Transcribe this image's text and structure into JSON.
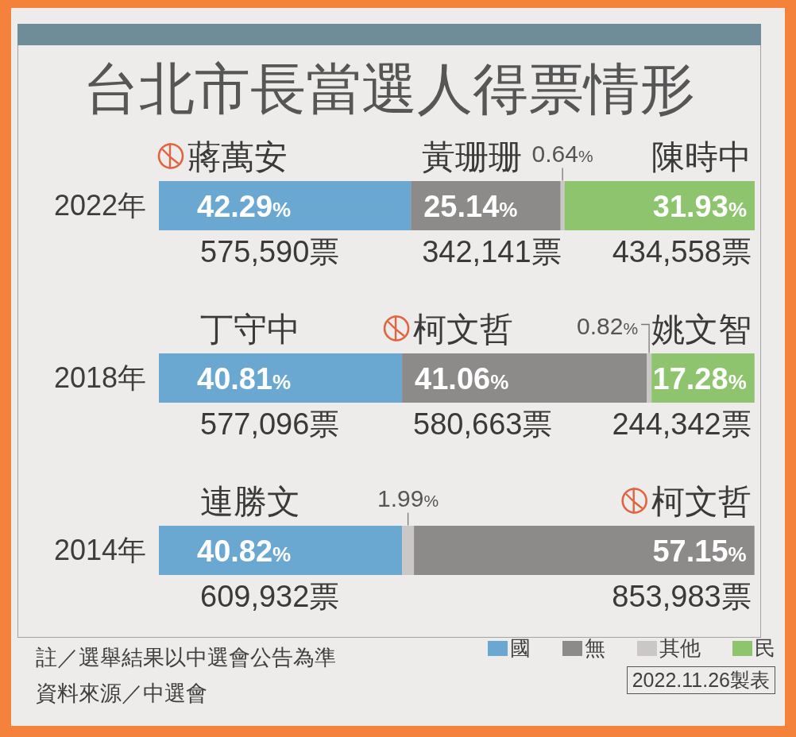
{
  "chart_data": {
    "type": "bar",
    "orientation": "horizontal",
    "stacked": true,
    "title": "台北市長當選人得票情形",
    "categories": [
      "2022年",
      "2018年",
      "2014年"
    ],
    "series": [
      {
        "name": "國",
        "color": "#6aa8d2",
        "values": [
          42.29,
          40.81,
          40.82
        ],
        "value_labels": [
          "42.29%",
          "40.81%",
          "40.82%"
        ]
      },
      {
        "color": "#cac7c6",
        "values": [
          null,
          null,
          1.99
        ],
        "value_labels": [
          null,
          null,
          "1.99%"
        ]
      },
      {
        "name": "無",
        "color": "#8d8b8a",
        "values": [
          25.14,
          41.06,
          57.15
        ],
        "value_labels": [
          "25.14%",
          "41.06%",
          "57.15%"
        ]
      },
      {
        "name": "其他",
        "color": "#cac7c6",
        "values": [
          0.64,
          0.82,
          null
        ],
        "value_labels": [
          "0.64%",
          "0.82%",
          null
        ]
      },
      {
        "name": "民",
        "color": "#8ec46e",
        "values": [
          31.93,
          17.28,
          null
        ],
        "value_labels": [
          "31.93%",
          "17.28%",
          null
        ]
      }
    ],
    "annotations": [
      "蔣萬安",
      "575,590票",
      "黃珊珊",
      "342,141票",
      "陳時中",
      "434,558票",
      "丁守中",
      "577,096票",
      "柯文哲",
      "580,663票",
      "姚文智",
      "244,342票",
      "連勝文",
      "609,932票",
      "柯文哲",
      "853,983票",
      "註／選舉結果以中選會公告為準",
      "資料來源／中選會",
      "2022.11.26製表"
    ],
    "legend": "bottom right",
    "tick_labels": "y"
  }
}
